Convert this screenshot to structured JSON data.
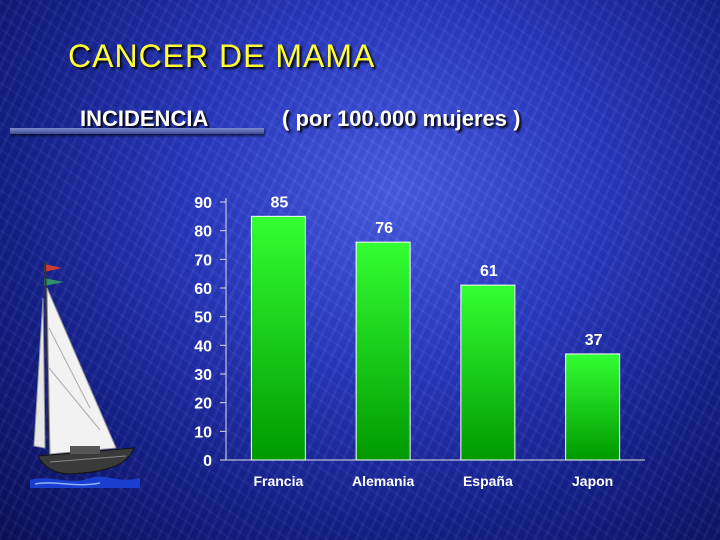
{
  "slide": {
    "title": "CANCER DE MAMA",
    "subtitle": "INCIDENCIA",
    "unit_label": "( por  100.000 mujeres )"
  },
  "colors": {
    "title": "#ffff33",
    "text": "#ffffff",
    "bar_top": "#33ff33",
    "bar_bottom": "#009900"
  },
  "chart_data": {
    "type": "bar",
    "title": "",
    "xlabel": "",
    "ylabel": "",
    "categories": [
      "Francia",
      "Alemania",
      "España",
      "Japon"
    ],
    "values": [
      85,
      76,
      61,
      37
    ],
    "data_labels": [
      "85",
      "76",
      "61",
      "37"
    ],
    "ylim": [
      0,
      90
    ],
    "yticks": [
      0,
      10,
      20,
      30,
      40,
      50,
      60,
      70,
      80,
      90
    ],
    "grid": false,
    "legend": "none"
  },
  "decoration": {
    "icon": "sailboat-icon"
  }
}
